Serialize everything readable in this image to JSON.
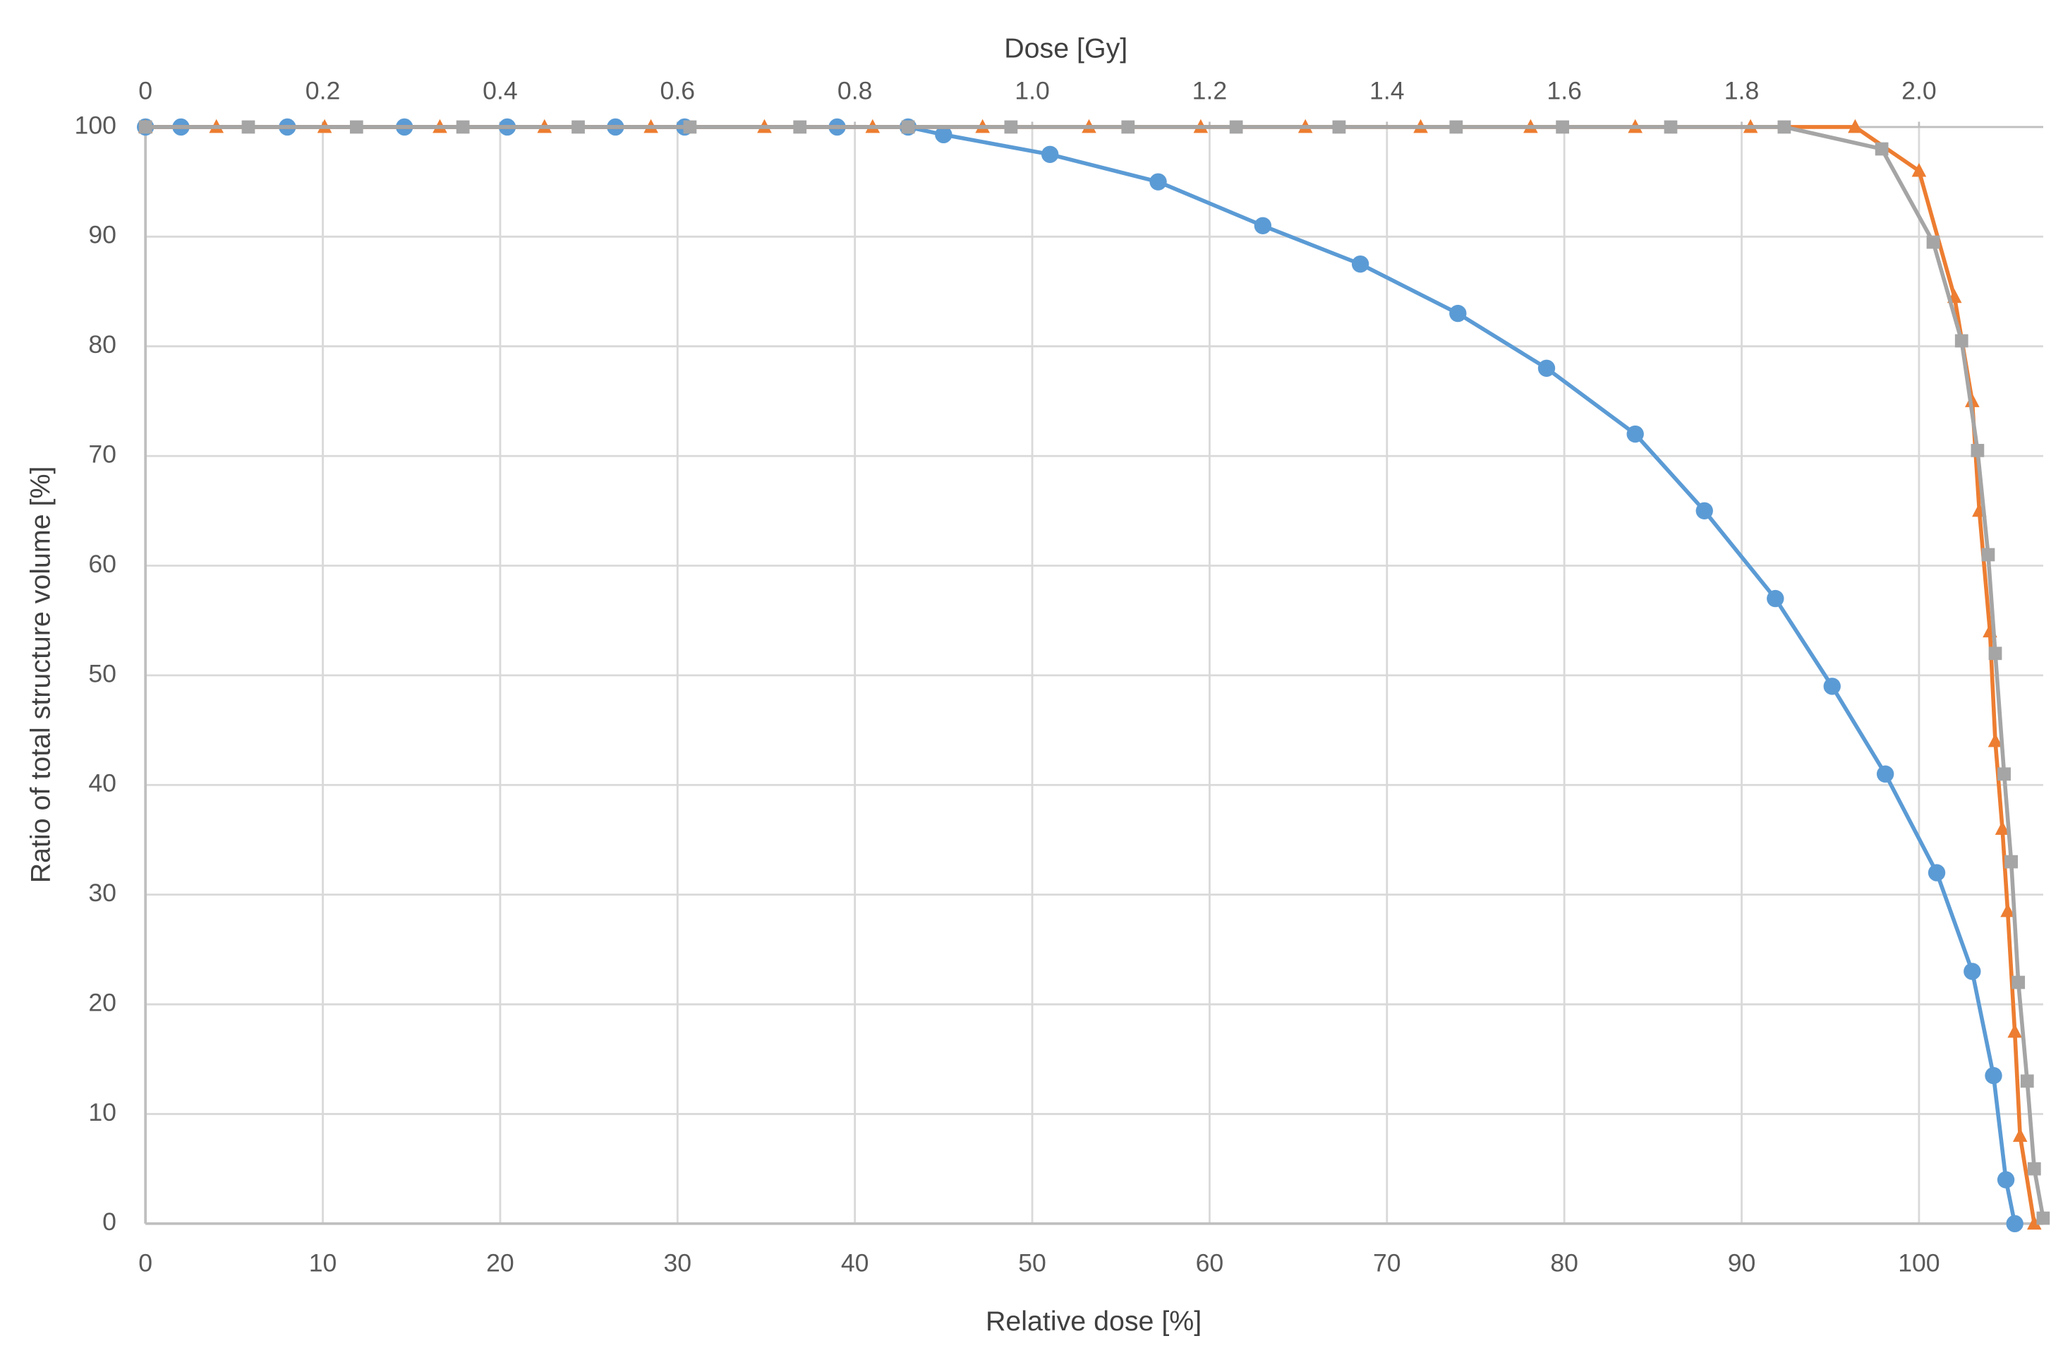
{
  "chart_data": {
    "type": "line",
    "xlabel": "Relative dose [%]",
    "x2label": "Dose [Gy]",
    "ylabel": "Ratio of total structure volume [%]",
    "xlim": [
      0,
      107
    ],
    "xticks": [
      0,
      10,
      20,
      30,
      40,
      50,
      60,
      70,
      80,
      90,
      100
    ],
    "x2lim": [
      0,
      2.14
    ],
    "x2ticks": [
      0,
      0.2,
      0.4,
      0.6,
      0.8,
      {
        "value": 1,
        "label": "1.0"
      },
      1.2,
      1.4,
      1.6,
      1.8,
      {
        "value": 2,
        "label": "2.0"
      }
    ],
    "ylim": [
      0,
      100
    ],
    "yticks": [
      0,
      10,
      20,
      30,
      40,
      50,
      60,
      70,
      80,
      90,
      100
    ],
    "grid": true,
    "series": [
      {
        "color": "#5b9bd5",
        "marker": "circle",
        "x": [
          0,
          2,
          8,
          14.6,
          20.4,
          26.5,
          30.4,
          39,
          43,
          45,
          51,
          57.1,
          63,
          68.5,
          74,
          79,
          84,
          87.9,
          91.9,
          95.1,
          98.1,
          101,
          103,
          104.2,
          104.9,
          105.4
        ],
        "values": [
          100,
          100,
          100,
          100,
          100,
          100,
          100,
          100,
          100,
          99.3,
          97.5,
          95,
          91,
          87.5,
          83,
          78,
          72,
          65,
          57,
          49,
          41,
          32,
          23,
          13.5,
          4,
          0
        ]
      },
      {
        "color": "#ed7d31",
        "marker": "triangle",
        "x": [
          0,
          4,
          10.1,
          16.6,
          22.5,
          28.5,
          34.9,
          41,
          47.2,
          53.2,
          59.5,
          65.4,
          71.9,
          78.1,
          84,
          90.5,
          96.4,
          100,
          102,
          103,
          103.4,
          104,
          104.3,
          104.7,
          105,
          105.4,
          105.7,
          106.5
        ],
        "values": [
          100,
          100,
          100,
          100,
          100,
          100,
          100,
          100,
          100,
          100,
          100,
          100,
          100,
          100,
          100,
          100,
          100,
          96,
          84.5,
          75,
          65,
          54,
          44,
          36,
          28.5,
          17.5,
          8,
          0
        ]
      },
      {
        "color": "#a5a5a5",
        "marker": "square",
        "x": [
          0,
          5.8,
          11.9,
          17.9,
          24.4,
          30.7,
          36.9,
          43,
          48.8,
          55.4,
          61.5,
          67.3,
          73.9,
          79.9,
          86,
          92.4,
          97.9,
          100.8,
          102.4,
          103.3,
          103.9,
          104.3,
          104.8,
          105.2,
          105.6,
          106.1,
          106.5,
          107
        ],
        "values": [
          100,
          100,
          100,
          100,
          100,
          100,
          100,
          100,
          100,
          100,
          100,
          100,
          100,
          100,
          100,
          100,
          98,
          89.5,
          80.5,
          70.5,
          61,
          52,
          41,
          33,
          22,
          13,
          5,
          0.5
        ]
      }
    ]
  }
}
